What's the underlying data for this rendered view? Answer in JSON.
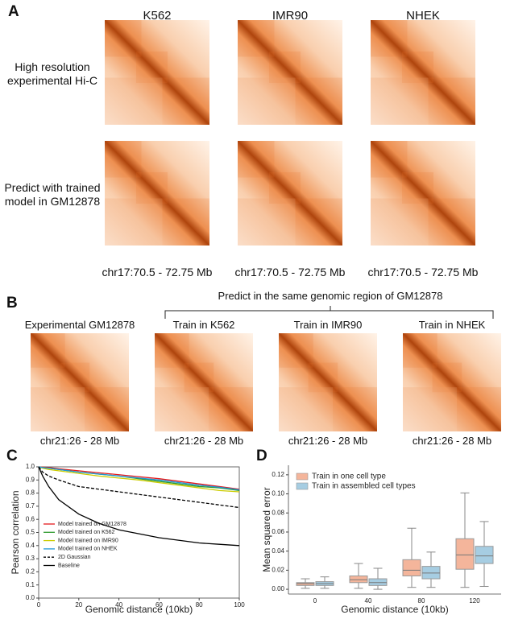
{
  "panel_a": {
    "label": "A",
    "columns": [
      "K562",
      "IMR90",
      "NHEK"
    ],
    "row_labels": [
      "High resolution experimental Hi-C",
      "Predict with trained model in GM12878"
    ],
    "captions": [
      "chr17:70.5 - 72.75 Mb",
      "chr17:70.5 - 72.75 Mb",
      "chr17:70.5 - 72.75 Mb"
    ]
  },
  "panel_b": {
    "label": "B",
    "bracket_title": "Predict in the same genomic region of GM12878",
    "titles": [
      "Experimental GM12878",
      "Train in K562",
      "Train in IMR90",
      "Train in NHEK"
    ],
    "captions": [
      "chr21:26 - 28 Mb",
      "chr21:26 - 28 Mb",
      "chr21:26 - 28 Mb",
      "chr21:26 - 28 Mb"
    ]
  },
  "chart_data": [
    {
      "type": "line",
      "panel_label": "C",
      "xlabel": "Genomic distance (10kb)",
      "ylabel": "Pearson correlation",
      "x": [
        0,
        2,
        5,
        10,
        20,
        30,
        40,
        50,
        60,
        70,
        80,
        90,
        100
      ],
      "series": [
        {
          "name": "Model trained on GM12878",
          "color": "#e31a1c",
          "linestyle": "solid",
          "values": [
            1.0,
            0.998,
            0.995,
            0.985,
            0.97,
            0.955,
            0.94,
            0.925,
            0.91,
            0.89,
            0.87,
            0.85,
            0.83
          ]
        },
        {
          "name": "Model trained on K562",
          "color": "#2e9a2e",
          "linestyle": "solid",
          "values": [
            1.0,
            0.995,
            0.99,
            0.98,
            0.96,
            0.945,
            0.93,
            0.91,
            0.89,
            0.87,
            0.85,
            0.84,
            0.82
          ]
        },
        {
          "name": "Model trained on IMR90",
          "color": "#cccc00",
          "linestyle": "solid",
          "values": [
            1.0,
            0.99,
            0.98,
            0.97,
            0.95,
            0.93,
            0.915,
            0.9,
            0.88,
            0.86,
            0.84,
            0.82,
            0.81
          ]
        },
        {
          "name": "Model trained on NHEK",
          "color": "#1f95d6",
          "linestyle": "solid",
          "values": [
            1.0,
            0.995,
            0.99,
            0.98,
            0.96,
            0.945,
            0.93,
            0.915,
            0.9,
            0.88,
            0.86,
            0.845,
            0.825
          ]
        },
        {
          "name": "2D Gaussian",
          "color": "#000000",
          "linestyle": "dashed",
          "values": [
            1.0,
            0.96,
            0.93,
            0.9,
            0.85,
            0.83,
            0.81,
            0.79,
            0.77,
            0.75,
            0.73,
            0.71,
            0.69
          ]
        },
        {
          "name": "Baseline",
          "color": "#000000",
          "linestyle": "solid",
          "values": [
            1.0,
            0.93,
            0.85,
            0.75,
            0.64,
            0.57,
            0.52,
            0.49,
            0.46,
            0.44,
            0.42,
            0.41,
            0.4
          ]
        }
      ],
      "xlim": [
        0,
        100
      ],
      "xticks": [
        0,
        20,
        40,
        60,
        80,
        100
      ],
      "ylim": [
        0,
        1
      ],
      "yticks": [
        {
          "value": 0,
          "label": "0.0"
        },
        0.1,
        0.2,
        0.3,
        0.4,
        0.5,
        0.6,
        0.7,
        0.8,
        0.9,
        {
          "value": 1,
          "label": "1.0"
        }
      ]
    },
    {
      "type": "box",
      "panel_label": "D",
      "xlabel": "Genomic distance (10kb)",
      "ylabel": "Mean squared error",
      "categories": [
        "0",
        "40",
        "80",
        "120"
      ],
      "series": [
        {
          "name": "Train in one cell type",
          "color": "#f4b59b",
          "boxes": [
            {
              "whislo": 0.001,
              "q1": 0.004,
              "med": 0.006,
              "q3": 0.007,
              "whishi": 0.011
            },
            {
              "whislo": 0.001,
              "q1": 0.007,
              "med": 0.01,
              "q3": 0.014,
              "whishi": 0.027
            },
            {
              "whislo": 0.002,
              "q1": 0.014,
              "med": 0.02,
              "q3": 0.031,
              "whishi": 0.064
            },
            {
              "whislo": 0.002,
              "q1": 0.021,
              "med": 0.036,
              "q3": 0.053,
              "whishi": 0.101
            }
          ]
        },
        {
          "name": "Train in assembled cell types",
          "color": "#a6cde2",
          "boxes": [
            {
              "whislo": 0.001,
              "q1": 0.004,
              "med": 0.006,
              "q3": 0.008,
              "whishi": 0.013
            },
            {
              "whislo": 0.0,
              "q1": 0.004,
              "med": 0.007,
              "q3": 0.011,
              "whishi": 0.022
            },
            {
              "whislo": 0.002,
              "q1": 0.011,
              "med": 0.017,
              "q3": 0.024,
              "whishi": 0.039
            },
            {
              "whislo": 0.003,
              "q1": 0.027,
              "med": 0.035,
              "q3": 0.045,
              "whishi": 0.071
            }
          ]
        }
      ],
      "ylim": [
        -0.005,
        0.13
      ],
      "yticks": [
        {
          "value": 0,
          "label": "0.00"
        },
        {
          "value": 0.02,
          "label": "0.02"
        },
        {
          "value": 0.04,
          "label": "0.04"
        },
        {
          "value": 0.06,
          "label": "0.06"
        },
        {
          "value": 0.08,
          "label": "0.08"
        },
        {
          "value": 0.1,
          "label": "0.10"
        },
        {
          "value": 0.12,
          "label": "0.12"
        }
      ]
    }
  ]
}
